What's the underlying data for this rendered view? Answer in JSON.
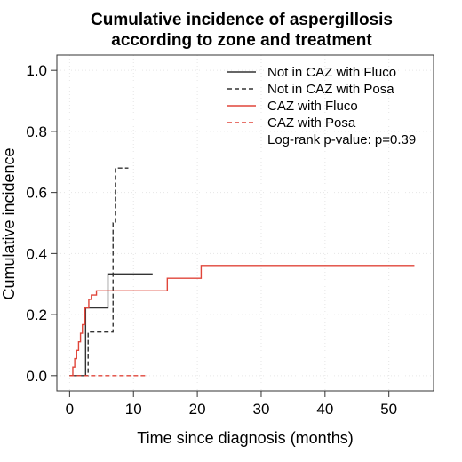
{
  "chart_data": {
    "type": "line",
    "step": true,
    "title": [
      "Cumulative incidence of aspergillosis",
      "according to zone and treatment"
    ],
    "xlabel": "Time since diagnosis (months)",
    "ylabel": "Cumulative incidence",
    "xlim": [
      -2,
      57
    ],
    "ylim": [
      -0.05,
      1.05
    ],
    "xticks": [
      0,
      10,
      20,
      30,
      40,
      50
    ],
    "yticks": [
      0.0,
      0.2,
      0.4,
      0.6,
      0.8,
      1.0
    ],
    "ytick_labels": [
      "0.0",
      "0.2",
      "0.4",
      "0.6",
      "0.8",
      "1.0"
    ],
    "grid": true,
    "legend_position": "top-right",
    "series": [
      {
        "name": "Not in CAZ with Fluco",
        "color": "#333333",
        "dash": "solid",
        "x": [
          0,
          2.0,
          2.5,
          3.0,
          6.0,
          13.0
        ],
        "y": [
          0,
          0,
          0.222,
          0.222,
          0.333,
          0.333
        ]
      },
      {
        "name": "Not in CAZ with Posa",
        "color": "#333333",
        "dash": "dashed",
        "x": [
          0,
          2.7,
          2.9,
          3.0,
          6.8,
          7.2,
          9.2
        ],
        "y": [
          0,
          0,
          0.143,
          0.143,
          0.5,
          0.68,
          0.68
        ]
      },
      {
        "name": "CAZ with Fluco",
        "color": "#e0453a",
        "dash": "solid",
        "x": [
          0,
          0.5,
          0.8,
          1.1,
          1.4,
          1.7,
          2.0,
          2.4,
          3.0,
          3.4,
          3.6,
          4.2,
          7.0,
          15.3,
          20.6,
          54.0
        ],
        "y": [
          0,
          0.028,
          0.056,
          0.083,
          0.111,
          0.139,
          0.167,
          0.222,
          0.25,
          0.264,
          0.264,
          0.278,
          0.278,
          0.319,
          0.361,
          0.361
        ]
      },
      {
        "name": "CAZ with Posa",
        "color": "#e0453a",
        "dash": "dashed",
        "x": [
          0,
          12.0
        ],
        "y": [
          0,
          0
        ]
      }
    ],
    "annotation": "Log-rank p-value: p=0.39"
  }
}
